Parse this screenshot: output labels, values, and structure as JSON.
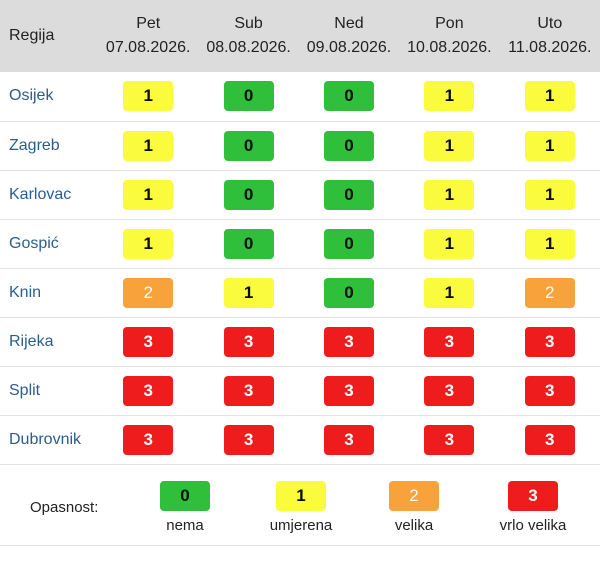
{
  "header": {
    "region_label": "Regija",
    "days": [
      {
        "name": "Pet",
        "date": "07.08.2026."
      },
      {
        "name": "Sub",
        "date": "08.08.2026."
      },
      {
        "name": "Ned",
        "date": "09.08.2026."
      },
      {
        "name": "Pon",
        "date": "10.08.2026."
      },
      {
        "name": "Uto",
        "date": "11.08.2026."
      }
    ]
  },
  "rows": [
    {
      "region": "Osijek",
      "levels": [
        "1",
        "0",
        "0",
        "1",
        "1"
      ]
    },
    {
      "region": "Zagreb",
      "levels": [
        "1",
        "0",
        "0",
        "1",
        "1"
      ]
    },
    {
      "region": "Karlovac",
      "levels": [
        "1",
        "0",
        "0",
        "1",
        "1"
      ]
    },
    {
      "region": "Gospić",
      "levels": [
        "1",
        "0",
        "0",
        "1",
        "1"
      ]
    },
    {
      "region": "Knin",
      "levels": [
        "2",
        "1",
        "0",
        "1",
        "2"
      ]
    },
    {
      "region": "Rijeka",
      "levels": [
        "3",
        "3",
        "3",
        "3",
        "3"
      ]
    },
    {
      "region": "Split",
      "levels": [
        "3",
        "3",
        "3",
        "3",
        "3"
      ]
    },
    {
      "region": "Dubrovnik",
      "levels": [
        "3",
        "3",
        "3",
        "3",
        "3"
      ]
    }
  ],
  "legend": {
    "title": "Opasnost:",
    "items": [
      {
        "level": "0",
        "label": "nema"
      },
      {
        "level": "1",
        "label": "umjerena"
      },
      {
        "level": "2",
        "label": "velika"
      },
      {
        "level": "3",
        "label": "vrlo velika"
      }
    ]
  },
  "colors": {
    "level_0": "#2fbf3a",
    "level_1": "#fbfb3e",
    "level_2": "#f8a23b",
    "level_3": "#ee1c1c",
    "region_link": "#2b5d8f",
    "header_bg": "#dcdcdc"
  }
}
